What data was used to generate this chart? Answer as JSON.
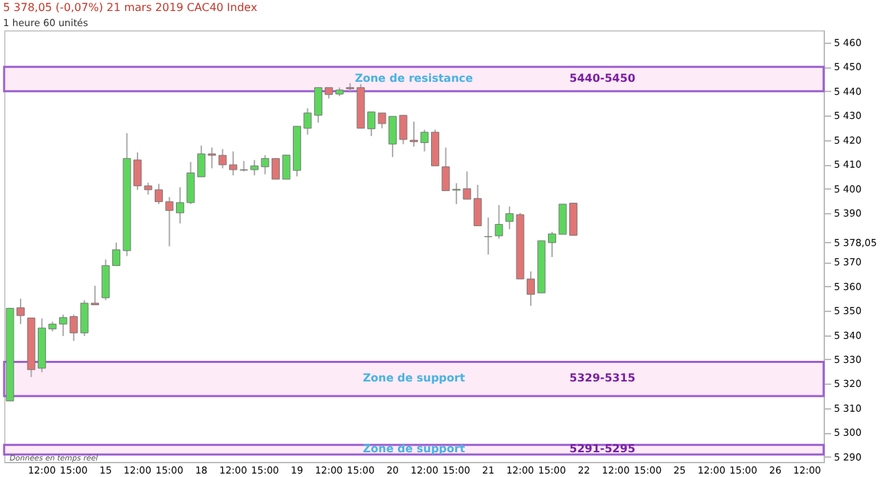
{
  "chart_data": {
    "type": "candlestick",
    "title": "5 378,05 (-0,07%) 21 mars 2019  CAC40 Index",
    "subtitle": "1 heure  60 unités",
    "categories": [
      null,
      null,
      null,
      "12:00",
      null,
      null,
      "15:00",
      null,
      null,
      "15",
      null,
      null,
      "12:00",
      null,
      null,
      "15:00",
      null,
      null,
      "18",
      null,
      null,
      "12:00",
      null,
      null,
      "15:00",
      null,
      null,
      "19",
      null,
      null,
      "12:00",
      null,
      null,
      "15:00",
      null,
      null,
      "20",
      null,
      null,
      "12:00",
      null,
      null,
      "15:00",
      null,
      null,
      "21",
      null,
      null,
      "12:00",
      null,
      null,
      "15:00",
      null,
      null,
      "22",
      null,
      null,
      "12:00",
      null,
      null,
      "15:00",
      null,
      null,
      "25",
      null,
      null,
      "12:00",
      null,
      null,
      "15:00",
      null,
      null,
      "26",
      null,
      null,
      "12:00",
      null
    ],
    "ohlc": [
      [
        5313,
        5351,
        5313,
        5351
      ],
      [
        5351.2,
        5354.9,
        5344.5,
        5348
      ],
      [
        5347,
        5347,
        5322.8,
        5325.8
      ],
      [
        5326.4,
        5346.8,
        5324.8,
        5342.9
      ],
      [
        5342.5,
        5345.5,
        5341.5,
        5344.5
      ],
      [
        5344.5,
        5348.4,
        5339.6,
        5347.2
      ],
      [
        5347.6,
        5348.4,
        5337.6,
        5340.9
      ],
      [
        5340.9,
        5354.3,
        5339.6,
        5353.1
      ],
      [
        5353.1,
        5360.2,
        5352.4,
        5352.4
      ],
      [
        5355.3,
        5371,
        5354.3,
        5368.5
      ],
      [
        5368.5,
        5377.9,
        5368.5,
        5375
      ],
      [
        5374.6,
        5422.8,
        5372.4,
        5412.4
      ],
      [
        5411.8,
        5414.9,
        5399.6,
        5401.2
      ],
      [
        5401.2,
        5402.5,
        5397.6,
        5399.6
      ],
      [
        5399.6,
        5402,
        5393.7,
        5394.7
      ],
      [
        5394.7,
        5396.6,
        5376.4,
        5391.1
      ],
      [
        5390.1,
        5400.6,
        5385.8,
        5394.3
      ],
      [
        5394.3,
        5411,
        5393.7,
        5406.5
      ],
      [
        5404.9,
        5417.7,
        5404.9,
        5414.3
      ],
      [
        5414.3,
        5416.9,
        5408.4,
        5413.7
      ],
      [
        5413.7,
        5416.3,
        5408.4,
        5409.8
      ],
      [
        5409.8,
        5415.3,
        5405.5,
        5407.8
      ],
      [
        5407.8,
        5411.4,
        5407.1,
        5407.6
      ],
      [
        5407.8,
        5411.8,
        5405.5,
        5409.4
      ],
      [
        5409,
        5413.8,
        5405.9,
        5412.4
      ],
      [
        5412.4,
        5412.4,
        5403.9,
        5403.9
      ],
      [
        5403.9,
        5413.8,
        5403.9,
        5413.8
      ],
      [
        5407.5,
        5425.6,
        5405.1,
        5425.6
      ],
      [
        5424.8,
        5433,
        5422.2,
        5431.1
      ],
      [
        5430.1,
        5441.5,
        5427.1,
        5441.5
      ],
      [
        5441.5,
        5441.5,
        5437,
        5438.6
      ],
      [
        5438.8,
        5441.5,
        5438,
        5440.5
      ],
      [
        5441.5,
        5443.3,
        5439.9,
        5441
      ],
      [
        5441.5,
        5442.9,
        5424.8,
        5424.8
      ],
      [
        5424.6,
        5431.5,
        5421.6,
        5431.5
      ],
      [
        5431.1,
        5431.1,
        5424.8,
        5426.7
      ],
      [
        5418.3,
        5429.7,
        5413,
        5429.7
      ],
      [
        5430.1,
        5430.1,
        5418.3,
        5420.2
      ],
      [
        5419.9,
        5427.5,
        5417.3,
        5419.3
      ],
      [
        5418.9,
        5424.2,
        5415.3,
        5423.2
      ],
      [
        5423.2,
        5424.2,
        5409.4,
        5409.4
      ],
      [
        5409,
        5416.9,
        5399.2,
        5399.2
      ],
      [
        5399.4,
        5402.3,
        5393.7,
        5399.8
      ],
      [
        5400,
        5407.1,
        5395.7,
        5395.7
      ],
      [
        5396,
        5401.6,
        5384.8,
        5384.8
      ],
      [
        5380.3,
        5388.2,
        5373,
        5380.4
      ],
      [
        5380.7,
        5393.3,
        5379.5,
        5385.4
      ],
      [
        5386.6,
        5392.7,
        5383.4,
        5389.8
      ],
      [
        5389.4,
        5390.1,
        5363,
        5363
      ],
      [
        5363,
        5366.1,
        5352,
        5356.7
      ],
      [
        5357.3,
        5378.7,
        5357.3,
        5378.7
      ],
      [
        5377.9,
        5382.3,
        5372,
        5381.5
      ],
      [
        5381.3,
        5393.7,
        5381.3,
        5393.7
      ],
      [
        5394.1,
        5394.1,
        5380.9,
        5380.9
      ],
      null,
      null,
      null,
      null,
      null,
      null,
      null,
      null,
      null,
      null,
      null,
      null,
      null,
      null,
      null,
      null,
      null,
      null,
      null,
      null,
      null,
      null,
      null
    ],
    "colors": [
      "#5ed65e",
      "#e07575",
      "#e07575",
      "#5ed65e",
      "#5ed65e",
      "#5ed65e",
      "#e07575",
      "#5ed65e",
      "#e07575",
      "#5ed65e",
      "#5ed65e",
      "#5ed65e",
      "#e07575",
      "#e07575",
      "#e07575",
      "#e07575",
      "#5ed65e",
      "#5ed65e",
      "#5ed65e",
      "#e07575",
      "#e07575",
      "#e07575",
      "#e07575",
      "#5ed65e",
      "#5ed65e",
      "#e07575",
      "#5ed65e",
      "#5ed65e",
      "#5ed65e",
      "#5ed65e",
      "#e07575",
      "#5ed65e",
      "#e07575",
      "#e07575",
      "#5ed65e",
      "#e07575",
      "#5ed65e",
      "#e07575",
      "#e07575",
      "#5ed65e",
      "#e07575",
      "#e07575",
      "#5ed65e",
      "#e07575",
      "#e07575",
      "#5ed65e",
      "#5ed65e",
      "#5ed65e",
      "#e07575",
      "#e07575",
      "#5ed65e",
      "#5ed65e",
      "#5ed65e",
      "#e07575",
      null,
      null,
      null,
      null,
      null,
      null,
      null,
      null,
      null,
      null,
      null,
      null,
      null,
      null,
      null,
      null,
      null,
      null,
      null,
      null,
      null,
      null,
      null
    ],
    "ylim": [
      5288,
      5465
    ],
    "yticks": [
      {
        "value": 5460,
        "label": "5 460"
      },
      {
        "value": 5450,
        "label": "5 450"
      },
      {
        "value": 5440,
        "label": "5 440"
      },
      {
        "value": 5430,
        "label": "5 430"
      },
      {
        "value": 5420,
        "label": "5 420"
      },
      {
        "value": 5410,
        "label": "5 410"
      },
      {
        "value": 5400,
        "label": "5 400"
      },
      {
        "value": 5390,
        "label": "5 390"
      },
      {
        "value": 5378.05,
        "label": "5 378,05"
      },
      {
        "value": 5370,
        "label": "5 370"
      },
      {
        "value": 5360,
        "label": "5 360"
      },
      {
        "value": 5350,
        "label": "5 350"
      },
      {
        "value": 5340,
        "label": "5 340"
      },
      {
        "value": 5330,
        "label": "5 330"
      },
      {
        "value": 5320,
        "label": "5 320"
      },
      {
        "value": 5310,
        "label": "5 310"
      },
      {
        "value": 5300,
        "label": "5 300"
      },
      {
        "value": 5290,
        "label": "5 290"
      }
    ],
    "bands": [
      {
        "axis": "y",
        "from": 5440,
        "to": 5450,
        "label": "Zone de resistance",
        "color": "#fdebf7"
      },
      {
        "axis": "y",
        "from": 5315,
        "to": 5329,
        "label": "Zone de support",
        "color": "#fdebf7"
      },
      {
        "axis": "y",
        "from": 5291,
        "to": 5295,
        "label": "Zone de support",
        "color": "#fdebf7"
      }
    ],
    "annotations": [
      "5440-5450",
      "5329-5315",
      "5291-5295",
      "Données en temps réel"
    ],
    "grid": false
  }
}
